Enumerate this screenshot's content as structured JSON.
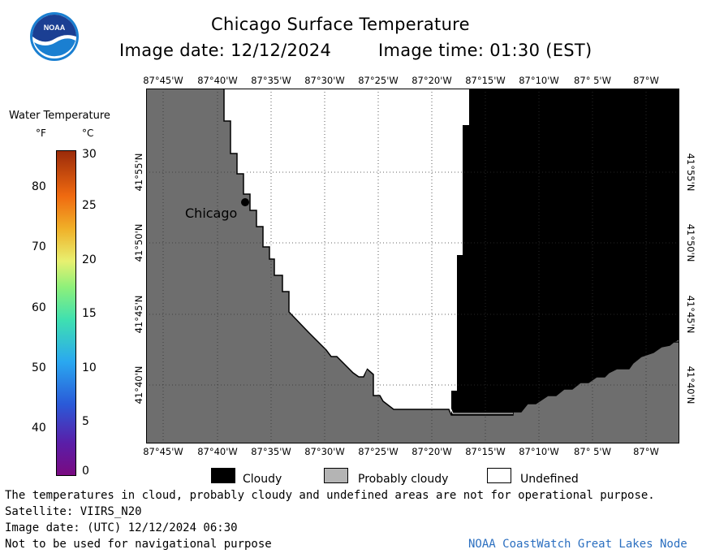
{
  "header": {
    "logo": "NOAA",
    "title": "Chicago Surface Temperature",
    "date_label": "Image date: 12/12/2024",
    "time_label": "Image time: 01:30 (EST)"
  },
  "colorbar": {
    "title": "Water Temperature",
    "unit_f": "°F",
    "unit_c": "°C",
    "fahrenheit_ticks": [
      "80",
      "70",
      "60",
      "50",
      "40"
    ],
    "celsius_ticks": [
      "30",
      "25",
      "20",
      "15",
      "10",
      "5",
      "0"
    ]
  },
  "map": {
    "lon_labels_top": [
      "87°45'W",
      "87°40'W",
      "87°35'W",
      "87°30'W",
      "87°25'W",
      "87°20'W",
      "87°15'W",
      "87°10'W",
      "87° 5'W",
      "87°W"
    ],
    "lon_labels_bottom": [
      "87°45'W",
      "87°40'W",
      "87°35'W",
      "87°30'W",
      "87°25'W",
      "87°20'W",
      "87°15'W",
      "87°10'W",
      "87° 5'W",
      "87°W"
    ],
    "lat_labels": [
      "41°55'N",
      "41°50'N",
      "41°45'N",
      "41°40'N"
    ],
    "city_label": "Chicago",
    "colors": {
      "land": "#6e6e6e",
      "cloudy": "#000000",
      "undefined": "#ffffff",
      "probably_cloudy": "#b4b4b4"
    }
  },
  "legend": {
    "cloudy": "Cloudy",
    "probably_cloudy": "Probably cloudy",
    "undefined": "Undefined"
  },
  "footer": {
    "disclaimer": "The temperatures in cloud, probably cloudy and undefined areas are not for operational purpose.",
    "satellite": "Satellite: VIIRS_N20",
    "utc_date": "Image date: (UTC) 12/12/2024  06:30",
    "nav_warning": "Not to be used for navigational purpose",
    "credit": "NOAA CoastWatch Great Lakes Node"
  }
}
